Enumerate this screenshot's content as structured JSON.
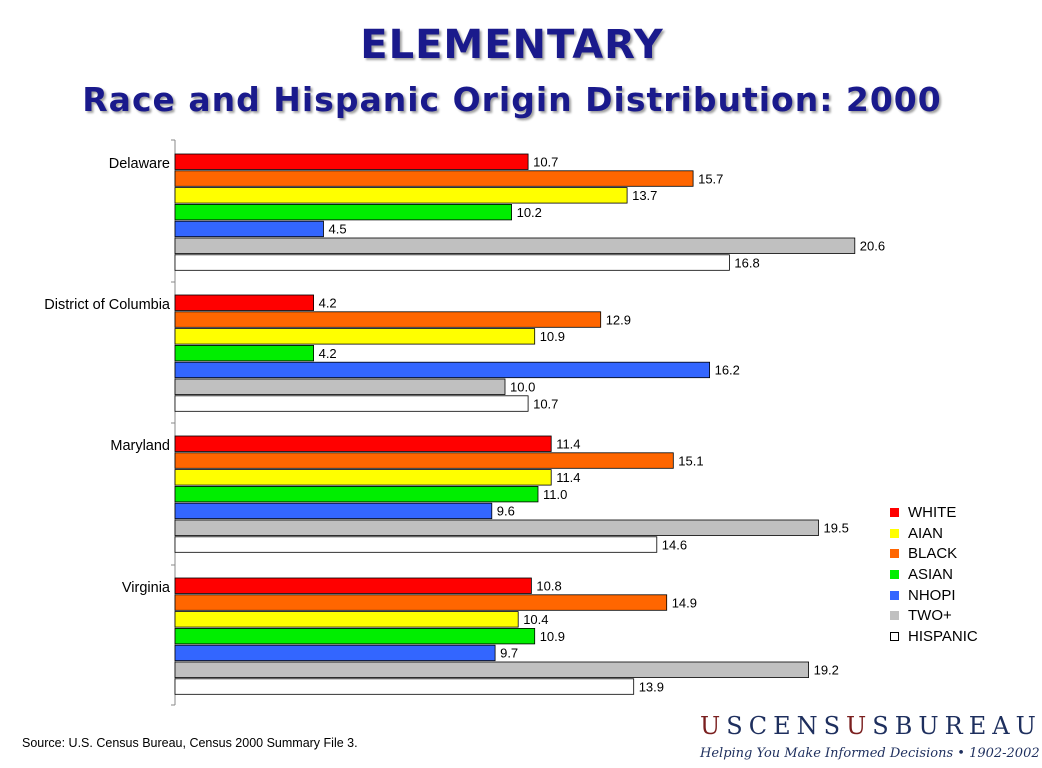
{
  "header": {
    "title": "ELEMENTARY",
    "subtitle": "Race and Hispanic Origin Distribution:  2000"
  },
  "chart_data": {
    "type": "bar",
    "orientation": "horizontal",
    "categories": [
      "Delaware",
      "District of Columbia",
      "Maryland",
      "Virginia"
    ],
    "series": [
      {
        "name": "WHITE",
        "color": "#ff0000",
        "values": [
          10.7,
          4.2,
          11.4,
          10.8
        ]
      },
      {
        "name": "BLACK",
        "color": "#ff6600",
        "values": [
          15.7,
          12.9,
          15.1,
          14.9
        ]
      },
      {
        "name": "AIAN",
        "color": "#ffff00",
        "values": [
          13.7,
          10.9,
          11.4,
          10.4
        ]
      },
      {
        "name": "ASIAN",
        "color": "#00ee00",
        "values": [
          10.2,
          4.2,
          11.0,
          10.9
        ]
      },
      {
        "name": "NHOPI",
        "color": "#3366ff",
        "values": [
          4.5,
          16.2,
          9.6,
          9.7
        ]
      },
      {
        "name": "TWO+",
        "color": "#c0c0c0",
        "values": [
          20.6,
          10.0,
          19.5,
          19.2
        ]
      },
      {
        "name": "HISPANIC",
        "color": "#ffffff",
        "values": [
          16.8,
          10.7,
          14.6,
          13.9
        ]
      }
    ],
    "legend_order": [
      "WHITE",
      "AIAN",
      "BLACK",
      "ASIAN",
      "NHOPI",
      "TWO+",
      "HISPANIC"
    ],
    "xlim": [
      0,
      21.3
    ],
    "grid": false,
    "legend_position": "right"
  },
  "footer": {
    "source": "Source:  U.S. Census Bureau, Census 2000 Summary File 3."
  },
  "logo": {
    "wordmark": "USCENSUSBUREAU",
    "tagline": "Helping You Make Informed Decisions • 1902-2002"
  }
}
